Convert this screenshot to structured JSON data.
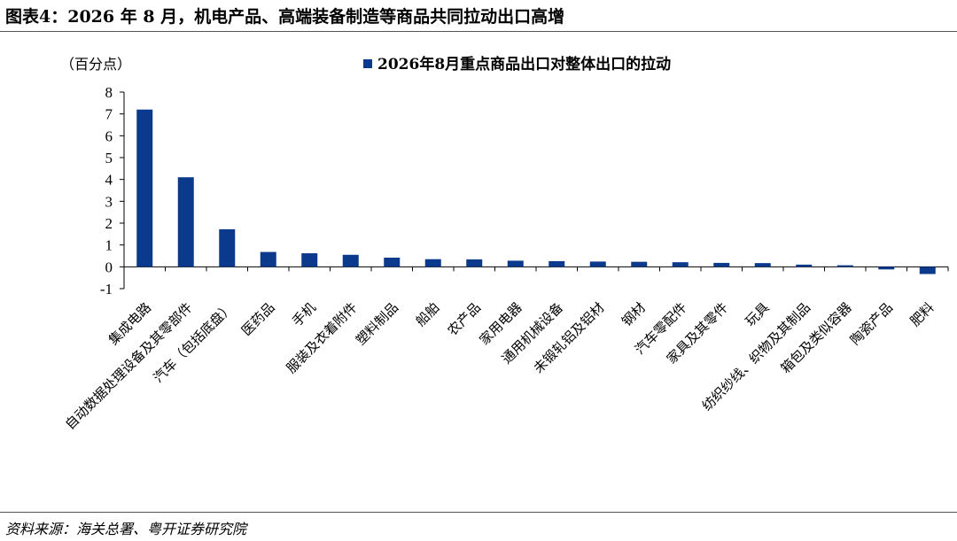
{
  "header": {
    "title": "图表4：2026 年 8 月，机电产品、高端装备制造等商品共同拉动出口高增"
  },
  "footer": {
    "source": "资料来源：海关总署、粤开证券研究院"
  },
  "chart_data": {
    "type": "bar",
    "title": "",
    "ylabel": "（百分点）",
    "xlabel": "",
    "ylim": [
      -1,
      8
    ],
    "yticks": [
      -1,
      0,
      1,
      2,
      3,
      4,
      5,
      6,
      7,
      8
    ],
    "grid": false,
    "legend_position": "top-center",
    "bar_color": "#0b3a8c",
    "categories": [
      "集成电路",
      "自动数据处理设备及其零部件",
      "汽车（包括底盘）",
      "医药品",
      "手机",
      "服装及衣着附件",
      "塑料制品",
      "船舶",
      "农产品",
      "家用电器",
      "通用机械设备",
      "未锻轧铝及铝材",
      "钢材",
      "汽车零配件",
      "家具及其零件",
      "玩具",
      "纺织纱线、织物及其制品",
      "箱包及类似容器",
      "陶瓷产品",
      "肥料"
    ],
    "series": [
      {
        "name": "2026年8月重点商品出口对整体出口的拉动",
        "values": [
          7.2,
          4.1,
          1.72,
          0.68,
          0.62,
          0.55,
          0.42,
          0.35,
          0.34,
          0.28,
          0.26,
          0.24,
          0.23,
          0.21,
          0.18,
          0.17,
          0.1,
          0.07,
          -0.12,
          -0.33
        ]
      }
    ]
  }
}
